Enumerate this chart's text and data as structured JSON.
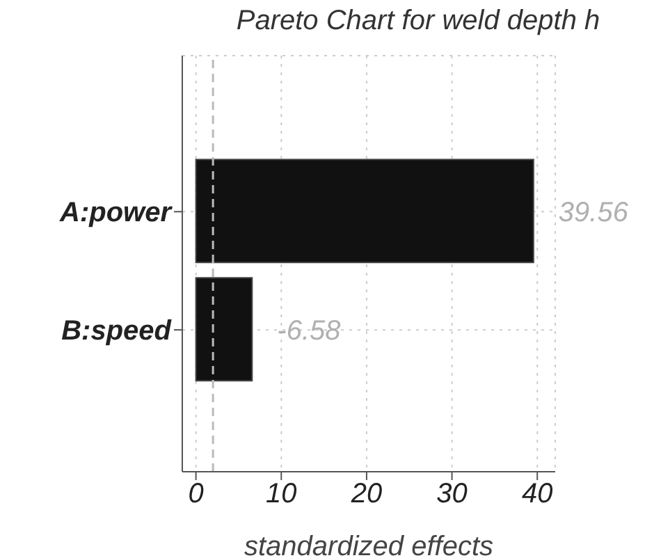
{
  "chart_data": {
    "type": "bar",
    "orientation": "horizontal",
    "title": "Pareto Chart for weld depth h",
    "xlabel": "standardized effects",
    "categories": [
      "A:power",
      "B:speed"
    ],
    "values": [
      39.56,
      6.58
    ],
    "color": "#111111",
    "annotations": [
      {
        "text": "39.56",
        "x": 39.56,
        "y": "A:power"
      },
      {
        "text": "-6.58",
        "x": 6.58,
        "y": "B:speed"
      }
    ],
    "xlim": [
      -1.6,
      42.1
    ],
    "xticks": [
      0,
      10,
      20,
      30,
      40
    ],
    "grid": true,
    "ref_lines": [
      {
        "axis": "x",
        "value": 2,
        "color": "#bbbbbb",
        "line_style": "dashed"
      }
    ]
  }
}
